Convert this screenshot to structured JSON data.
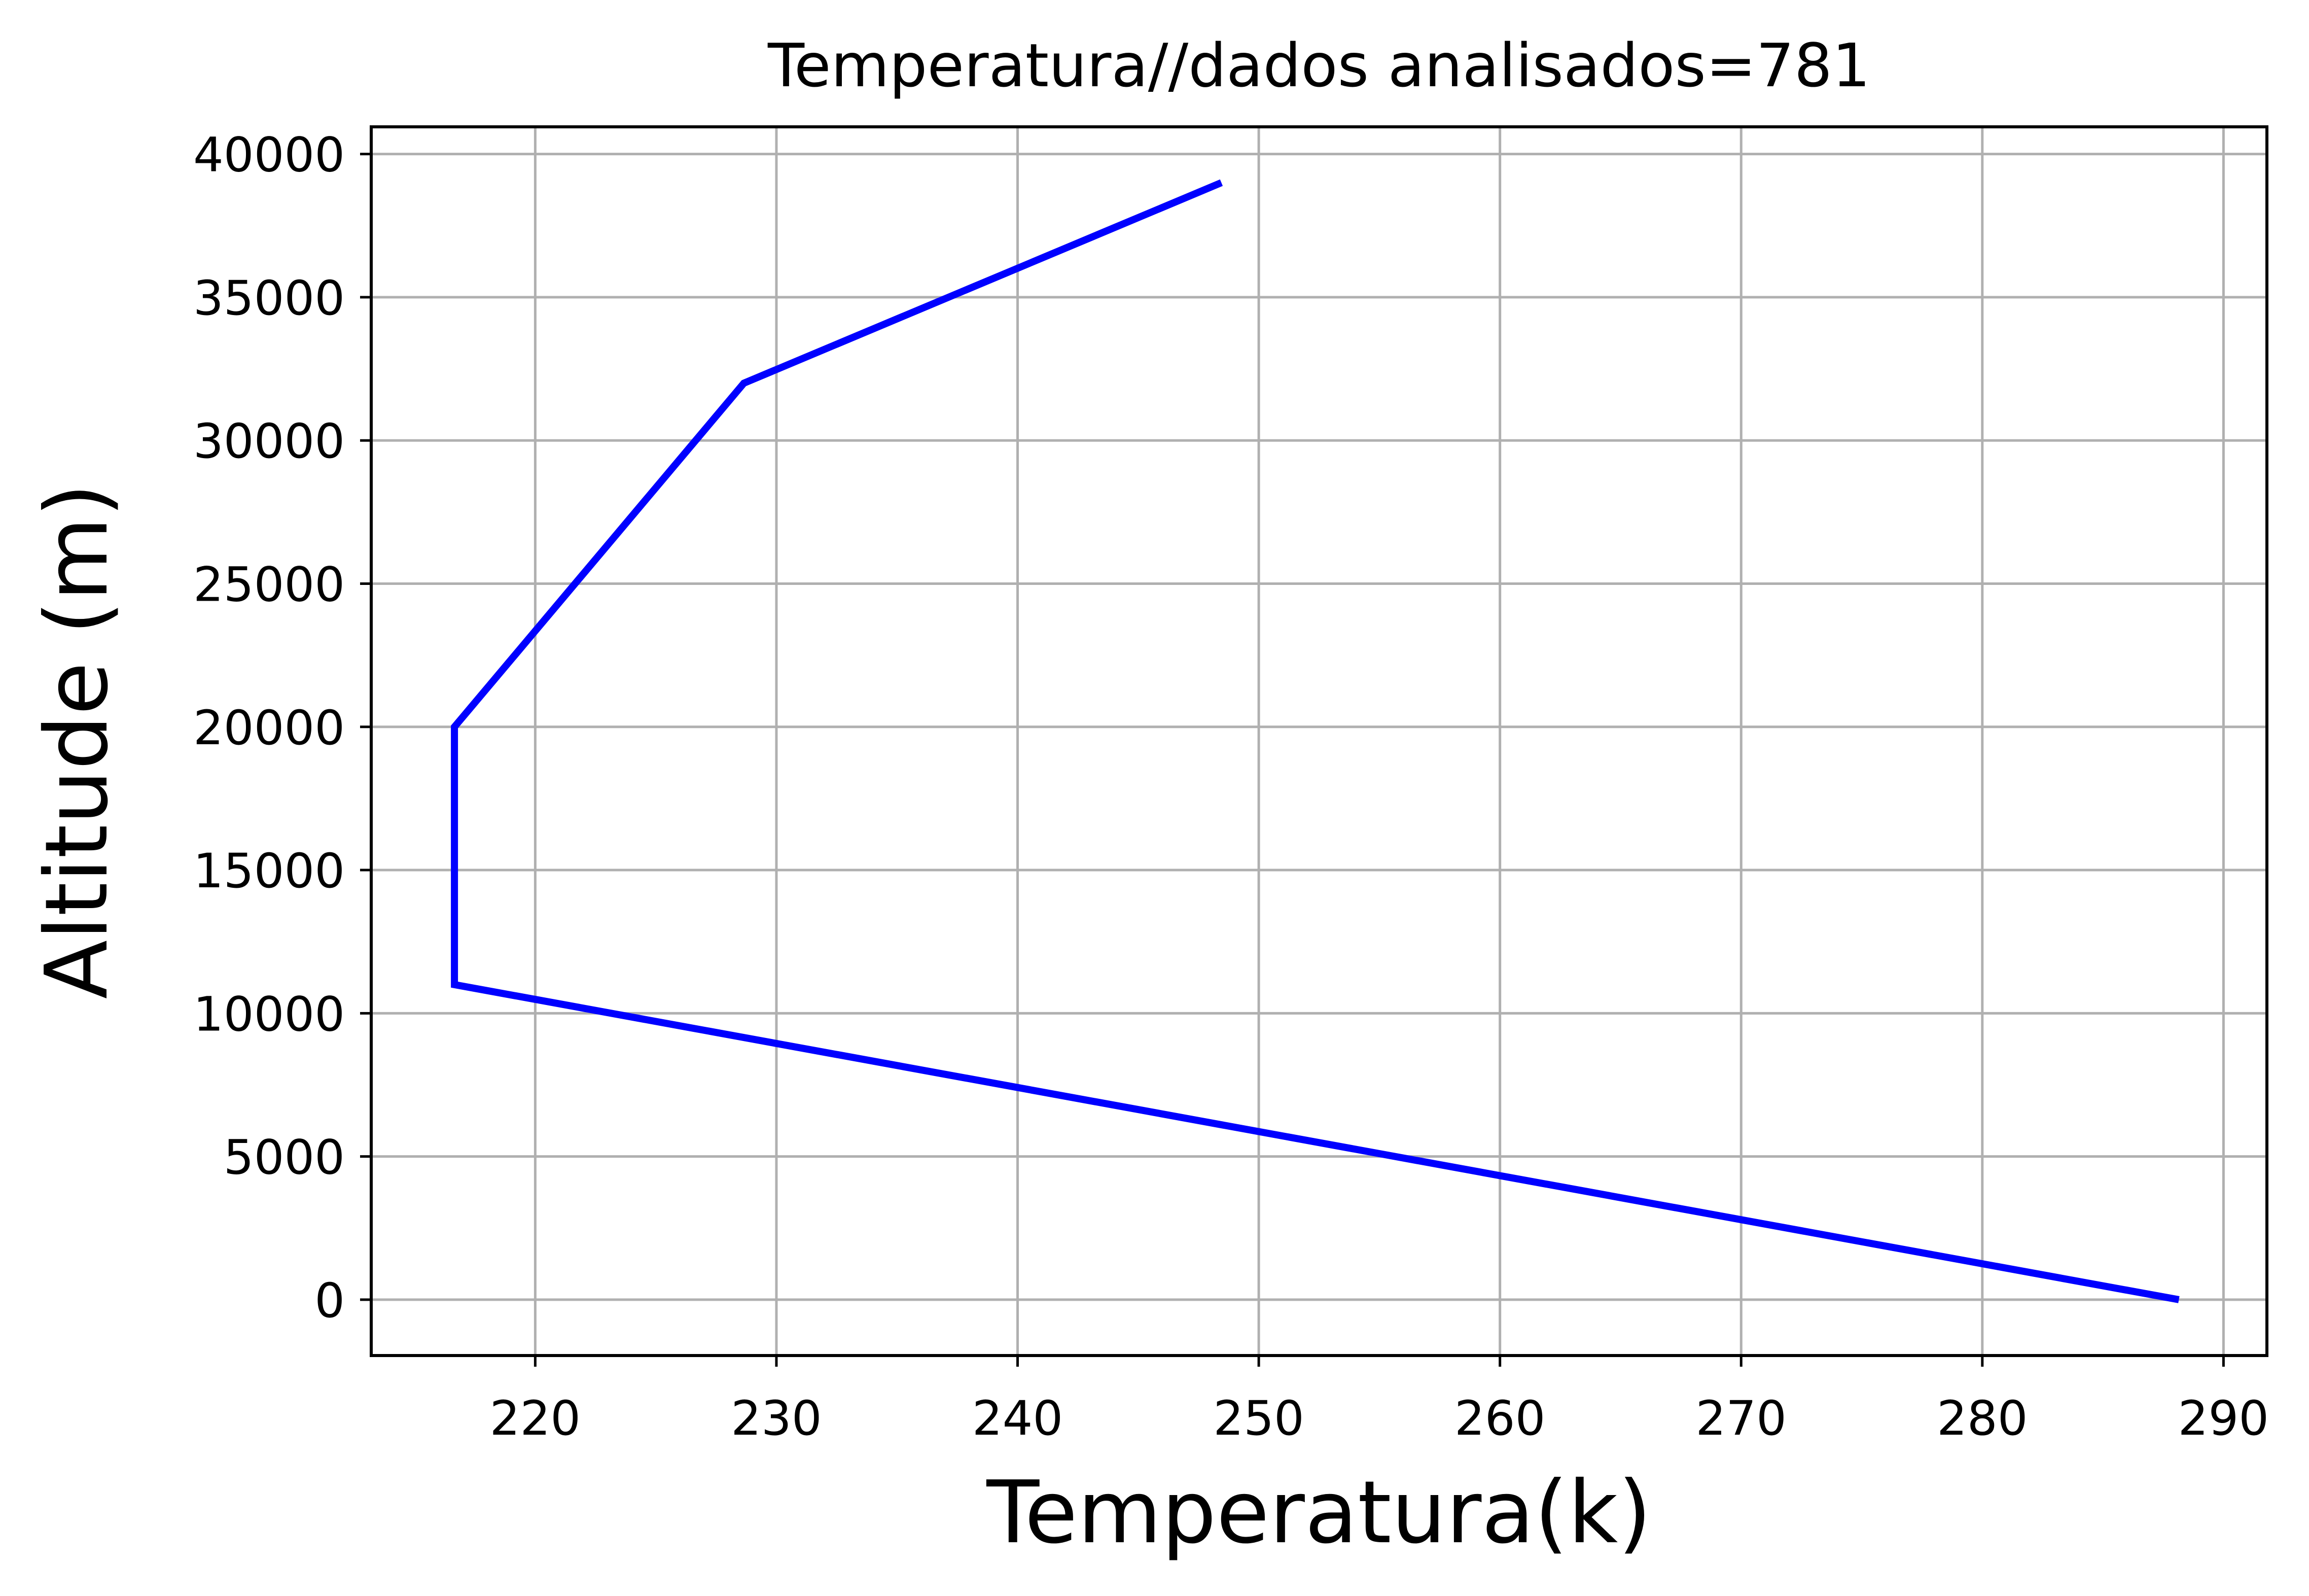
{
  "chart_data": {
    "type": "line",
    "title": "Temperatura//dados analisados=781",
    "xlabel": "Temperatura(k)",
    "ylabel": "Altitude (m)",
    "xlim": [
      213.2,
      291.8
    ],
    "ylim": [
      -1950,
      40950
    ],
    "xticks": [
      220,
      230,
      240,
      250,
      260,
      270,
      280,
      290
    ],
    "yticks": [
      0,
      5000,
      10000,
      15000,
      20000,
      25000,
      30000,
      35000,
      40000
    ],
    "grid": true,
    "colors": {
      "line": "#0000ff",
      "grid": "#b0b0b0",
      "axes": "#000000"
    },
    "series": [
      {
        "x": [
          288.15,
          216.65,
          216.65,
          228.65,
          248.45
        ],
        "y": [
          0,
          11000,
          20000,
          32000,
          39000
        ]
      }
    ]
  }
}
